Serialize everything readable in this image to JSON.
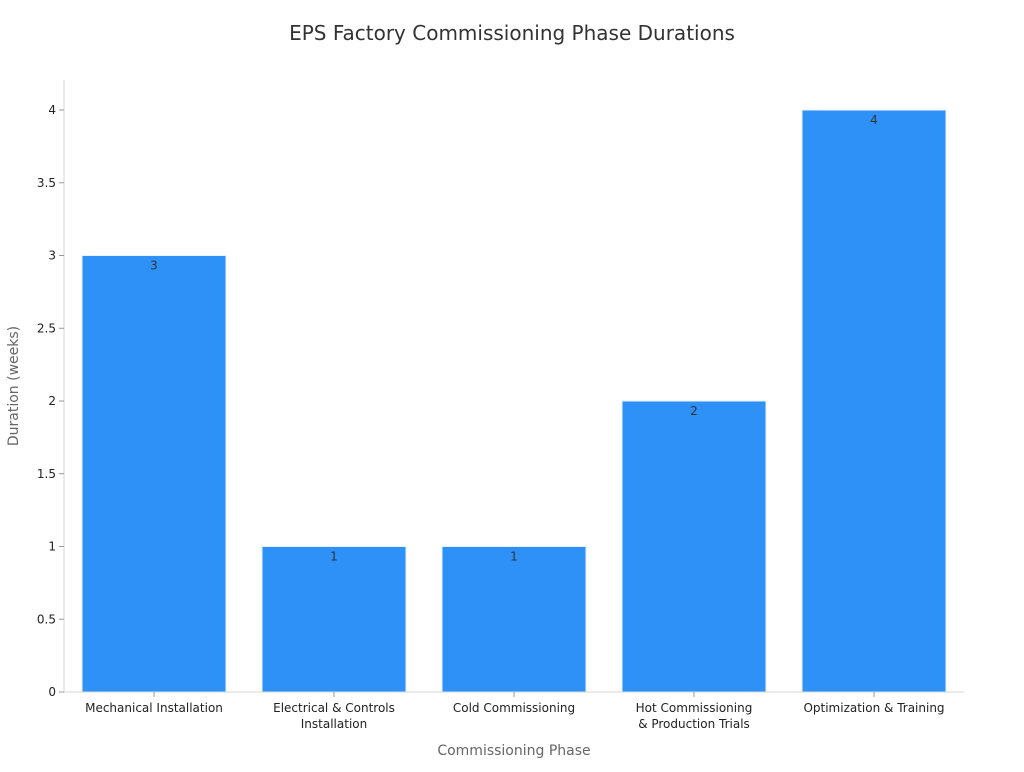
{
  "chart_data": {
    "type": "bar",
    "title": "EPS Factory Commissioning Phase Durations",
    "xlabel": "Commissioning Phase",
    "ylabel": "Duration (weeks)",
    "categories": [
      [
        "Mechanical Installation"
      ],
      [
        "Electrical & Controls",
        "Installation"
      ],
      [
        "Cold Commissioning"
      ],
      [
        "Hot Commissioning",
        "& Production Trials"
      ],
      [
        "Optimization & Training"
      ]
    ],
    "values": [
      3,
      1,
      1,
      2,
      4
    ],
    "data_labels": [
      "3",
      "1",
      "1",
      "2",
      "4"
    ],
    "ylim": [
      0,
      4.2
    ],
    "yticks": [
      0,
      0.5,
      1,
      1.5,
      2,
      2.5,
      3,
      3.5,
      4
    ],
    "ytick_labels": [
      "0",
      "0.5",
      "1",
      "1.5",
      "2",
      "2.5",
      "3",
      "3.5",
      "4"
    ],
    "bar_color": "#2e91f7",
    "grid": false,
    "legend": "none"
  }
}
